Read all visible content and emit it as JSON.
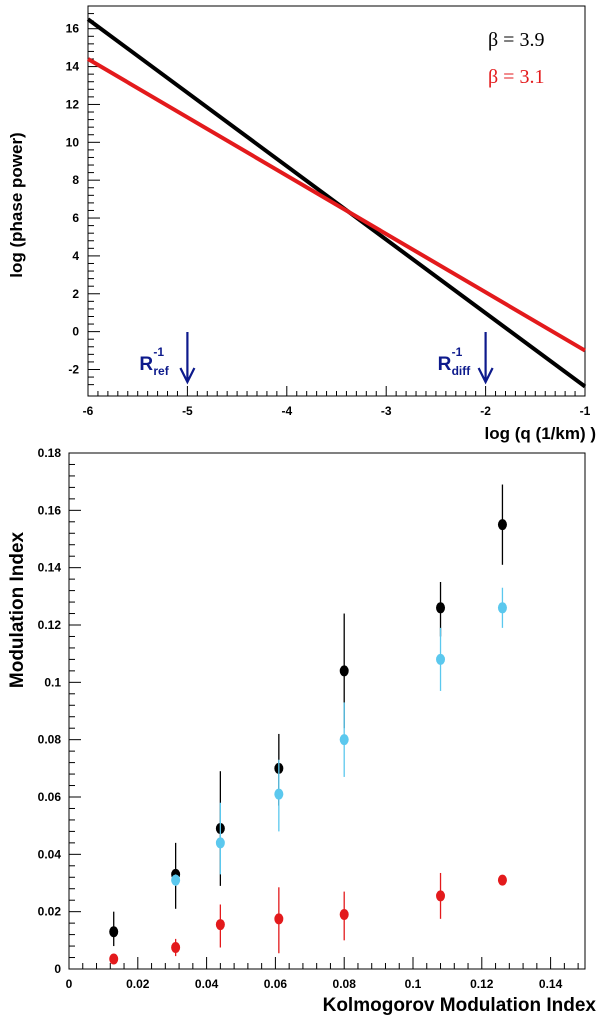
{
  "chart_data": [
    {
      "type": "line",
      "xlabel": "log (q (1/km) )",
      "ylabel": "log (phase power)",
      "xlim": [
        -6,
        -1
      ],
      "ylim": [
        -3.4,
        17.2
      ],
      "xticks": [
        "-6",
        "-5",
        "-4",
        "-3",
        "-2",
        "-1"
      ],
      "yticks": [
        "-2",
        "0",
        "2",
        "4",
        "6",
        "8",
        "10",
        "12",
        "14",
        "16"
      ],
      "series": [
        {
          "name": "β = 3.9",
          "color": "#000000",
          "x": [
            -6,
            -1
          ],
          "y": [
            16.5,
            -2.9
          ]
        },
        {
          "name": "β = 3.1",
          "color": "#e31a1c",
          "x": [
            -6,
            -1
          ],
          "y": [
            14.4,
            -1.0
          ]
        }
      ],
      "annotations": [
        {
          "label": "R",
          "superscript": "-1",
          "subscript": "ref",
          "x": -5,
          "color": "#0d1a8c"
        },
        {
          "label": "R",
          "superscript": "-1",
          "subscript": "diff",
          "x": -2,
          "color": "#0d1a8c"
        }
      ]
    },
    {
      "type": "scatter",
      "xlabel": "Kolmogorov Modulation Index",
      "ylabel": "Modulation Index",
      "xlim": [
        0,
        0.15
      ],
      "ylim": [
        0,
        0.18
      ],
      "xticks": [
        "0",
        "0.02",
        "0.04",
        "0.06",
        "0.08",
        "0.1",
        "0.12",
        "0.14"
      ],
      "yticks": [
        "0",
        "0.02",
        "0.04",
        "0.06",
        "0.08",
        "0.1",
        "0.12",
        "0.14",
        "0.16",
        "0.18"
      ],
      "series": [
        {
          "name": "black",
          "color": "#000000",
          "x": [
            0.013,
            0.031,
            0.044,
            0.061,
            0.08,
            0.108,
            0.126
          ],
          "y": [
            0.013,
            0.033,
            0.049,
            0.07,
            0.104,
            0.126,
            0.155
          ],
          "err_low": [
            0.005,
            0.012,
            0.02,
            0.013,
            0.02,
            0.01,
            0.014
          ],
          "err_high": [
            0.007,
            0.011,
            0.02,
            0.012,
            0.02,
            0.009,
            0.014
          ]
        },
        {
          "name": "cyan",
          "color": "#5bc8ee",
          "x": [
            0.031,
            0.044,
            0.061,
            0.08,
            0.108,
            0.126
          ],
          "y": [
            0.031,
            0.044,
            0.061,
            0.08,
            0.108,
            0.126
          ],
          "err_low": [
            0.002,
            0.011,
            0.013,
            0.013,
            0.011,
            0.007
          ],
          "err_high": [
            0.002,
            0.014,
            0.012,
            0.013,
            0.011,
            0.007
          ]
        },
        {
          "name": "red",
          "color": "#e31a1c",
          "x": [
            0.013,
            0.031,
            0.044,
            0.061,
            0.08,
            0.108,
            0.126
          ],
          "y": [
            0.0035,
            0.0075,
            0.0155,
            0.0175,
            0.019,
            0.0255,
            0.031
          ],
          "err_low": [
            0.001,
            0.003,
            0.008,
            0.012,
            0.009,
            0.008,
            0.001
          ],
          "err_high": [
            0.001,
            0.003,
            0.007,
            0.011,
            0.008,
            0.008,
            0.001
          ]
        }
      ]
    }
  ]
}
